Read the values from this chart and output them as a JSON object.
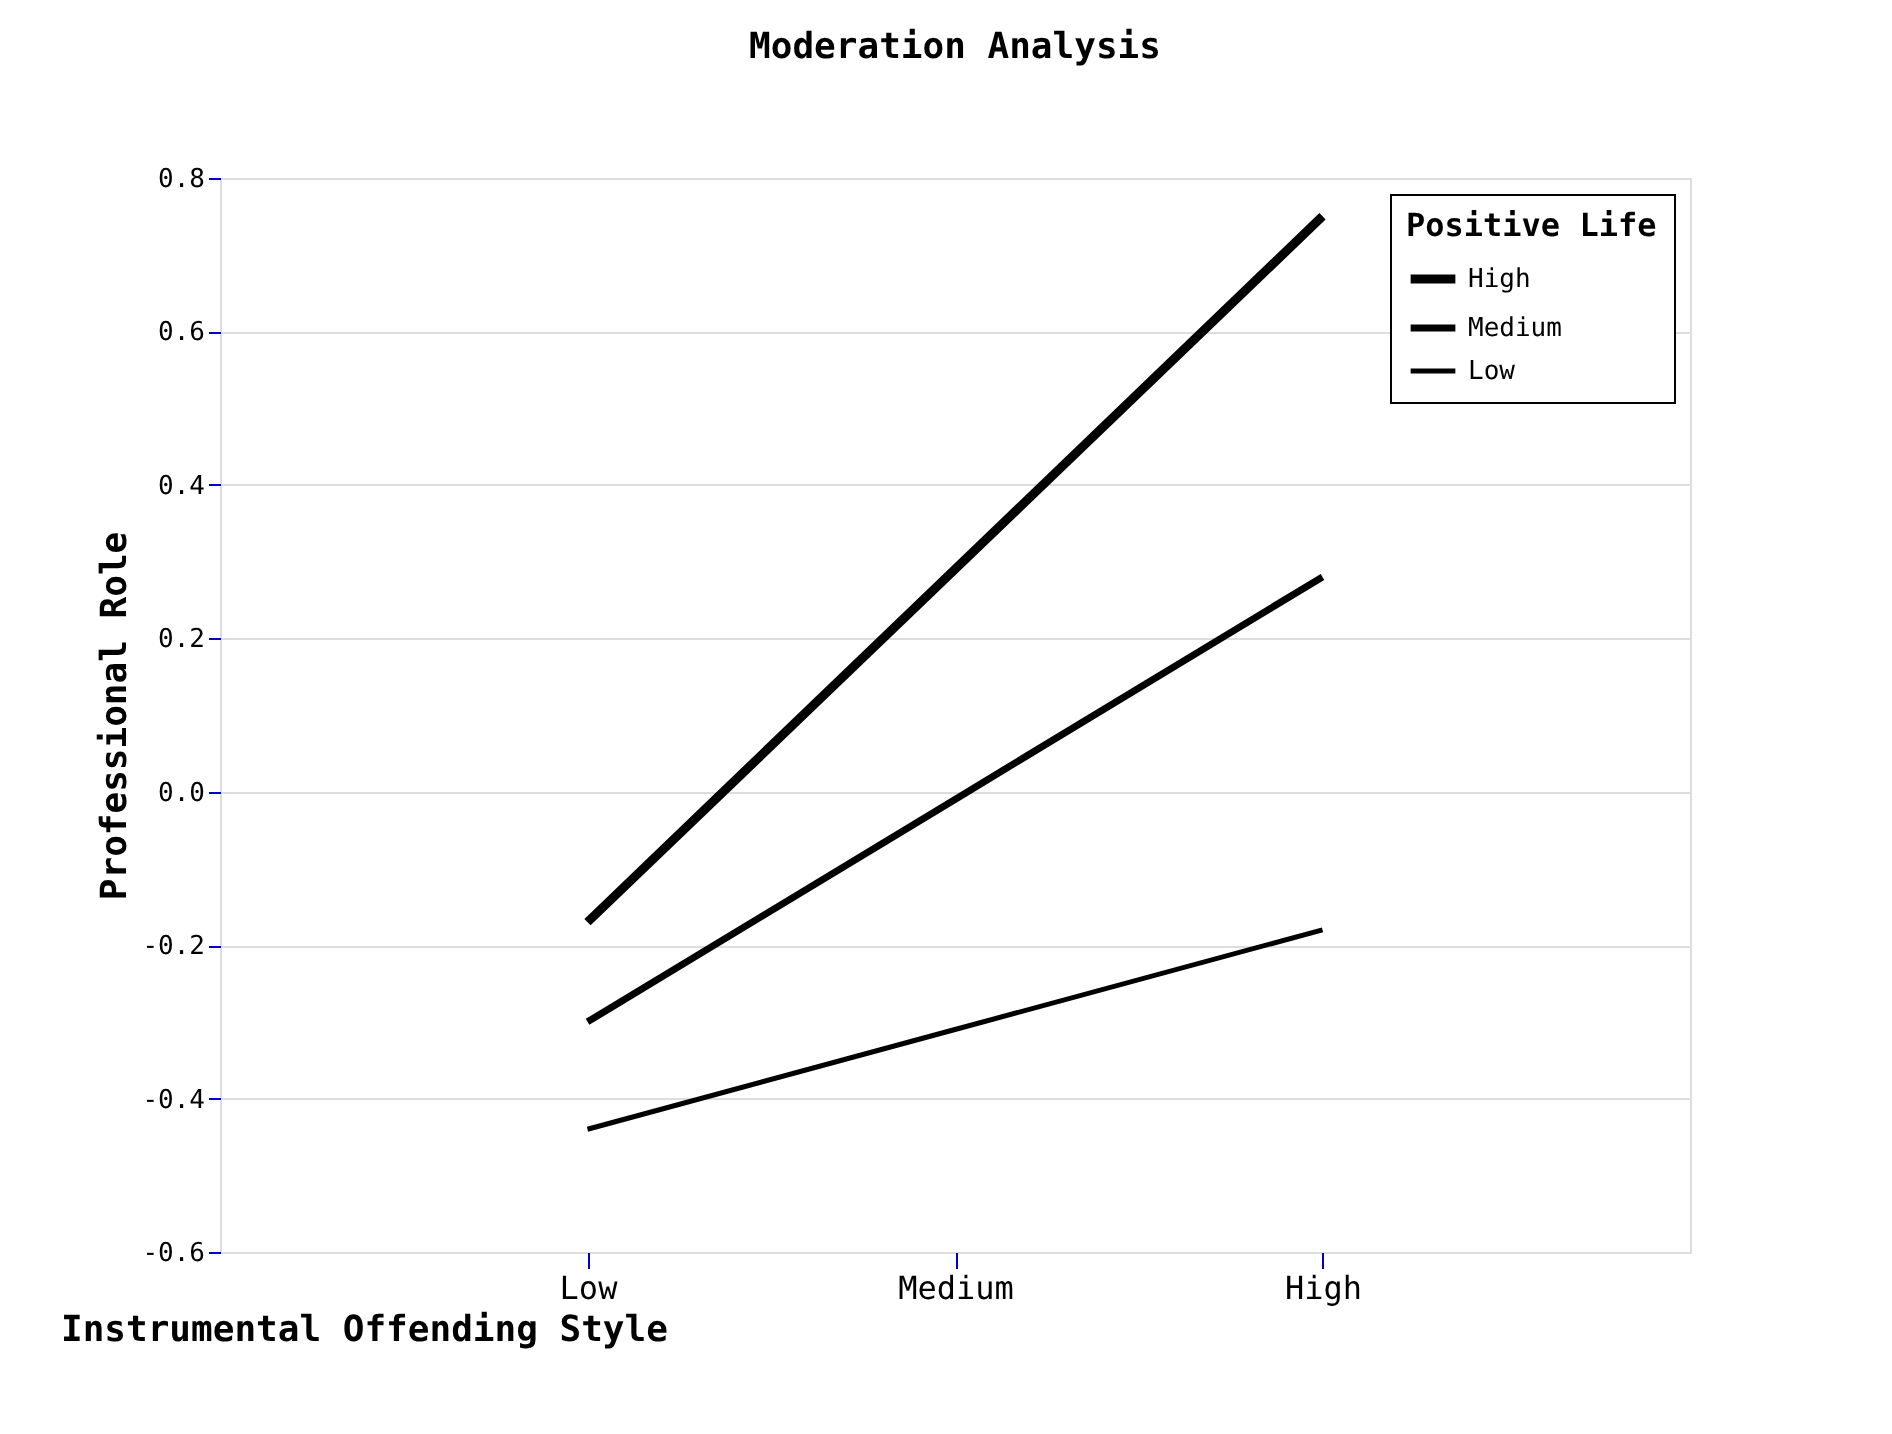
{
  "chart_data": {
    "type": "line",
    "title": "Moderation Analysis",
    "xlabel": "Instrumental Offending Style",
    "ylabel": "Professional Role",
    "legend_title": "Positive Life",
    "categories": [
      "Low",
      "Medium",
      "High"
    ],
    "series": [
      {
        "name": "High",
        "color": "#000000",
        "values": [
          -0.17,
          0.29,
          0.75
        ]
      },
      {
        "name": "Medium",
        "color": "#000000",
        "values": [
          -0.3,
          -0.01,
          0.28
        ]
      },
      {
        "name": "Low",
        "color": "#000000",
        "values": [
          -0.44,
          -0.31,
          -0.18
        ]
      }
    ],
    "ylim": [
      -0.6,
      0.8
    ],
    "yticks": [
      -0.6,
      -0.4,
      -0.2,
      {
        "value": 0,
        "label": "0.0"
      },
      0.2,
      0.4,
      0.6,
      0.8
    ],
    "grid": "y",
    "legend": "top right",
    "marker": "none",
    "line_style": "solid"
  }
}
